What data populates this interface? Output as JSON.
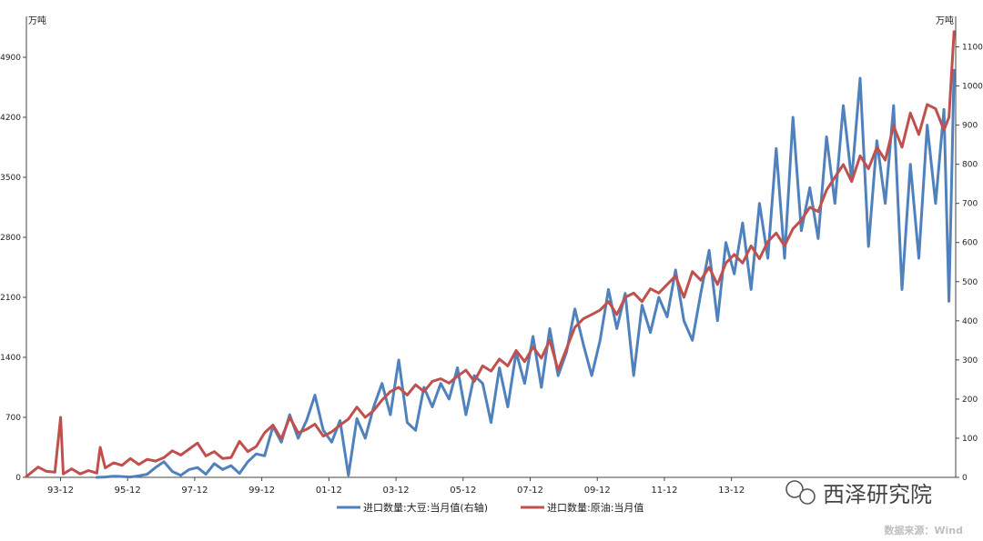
{
  "chart_data": {
    "type": "line",
    "title": "",
    "left_axis": {
      "unit_label": "万吨",
      "ylim": [
        0,
        5250
      ],
      "ticks": [
        0,
        700,
        1400,
        2100,
        2800,
        3500,
        4200,
        4900
      ]
    },
    "right_axis": {
      "unit_label": "万吨",
      "ylim": [
        0,
        1150
      ],
      "ticks": [
        0,
        100,
        200,
        300,
        400,
        500,
        600,
        700,
        800,
        900,
        1000,
        1100
      ]
    },
    "x_axis": {
      "start": 1992.9,
      "end": 2020.6,
      "tick_labels": [
        {
          "label": "93-12",
          "value": 1993.917
        },
        {
          "label": "95-12",
          "value": 1995.917
        },
        {
          "label": "97-12",
          "value": 1997.917
        },
        {
          "label": "99-12",
          "value": 1999.917
        },
        {
          "label": "01-12",
          "value": 2001.917
        },
        {
          "label": "03-12",
          "value": 2003.917
        },
        {
          "label": "05-12",
          "value": 2005.917
        },
        {
          "label": "07-12",
          "value": 2007.917
        },
        {
          "label": "09-12",
          "value": 2009.917
        },
        {
          "label": "11-12",
          "value": 2011.917
        },
        {
          "label": "13-12",
          "value": 2013.917
        }
      ]
    },
    "series": [
      {
        "name": "进口数量:大豆:当月值(右轴)",
        "axis": "right",
        "color": "#4f81bd",
        "points": [
          [
            1995.0,
            0
          ],
          [
            1995.25,
            1
          ],
          [
            1995.5,
            3
          ],
          [
            1995.75,
            2
          ],
          [
            1996.0,
            1
          ],
          [
            1996.25,
            4
          ],
          [
            1996.5,
            8
          ],
          [
            1996.75,
            25
          ],
          [
            1997.0,
            40
          ],
          [
            1997.25,
            15
          ],
          [
            1997.5,
            5
          ],
          [
            1997.75,
            20
          ],
          [
            1998.0,
            25
          ],
          [
            1998.25,
            8
          ],
          [
            1998.5,
            35
          ],
          [
            1998.75,
            20
          ],
          [
            1999.0,
            30
          ],
          [
            1999.25,
            10
          ],
          [
            1999.5,
            40
          ],
          [
            1999.75,
            60
          ],
          [
            2000.0,
            55
          ],
          [
            2000.25,
            130
          ],
          [
            2000.5,
            90
          ],
          [
            2000.75,
            160
          ],
          [
            2001.0,
            100
          ],
          [
            2001.25,
            145
          ],
          [
            2001.5,
            210
          ],
          [
            2001.75,
            120
          ],
          [
            2002.0,
            90
          ],
          [
            2002.25,
            145
          ],
          [
            2002.5,
            5
          ],
          [
            2002.75,
            150
          ],
          [
            2003.0,
            100
          ],
          [
            2003.25,
            180
          ],
          [
            2003.5,
            240
          ],
          [
            2003.75,
            160
          ],
          [
            2004.0,
            300
          ],
          [
            2004.25,
            140
          ],
          [
            2004.5,
            120
          ],
          [
            2004.75,
            230
          ],
          [
            2005.0,
            180
          ],
          [
            2005.25,
            240
          ],
          [
            2005.5,
            200
          ],
          [
            2005.75,
            280
          ],
          [
            2006.0,
            160
          ],
          [
            2006.25,
            260
          ],
          [
            2006.5,
            240
          ],
          [
            2006.75,
            140
          ],
          [
            2007.0,
            280
          ],
          [
            2007.25,
            180
          ],
          [
            2007.5,
            320
          ],
          [
            2007.75,
            240
          ],
          [
            2008.0,
            360
          ],
          [
            2008.25,
            230
          ],
          [
            2008.5,
            380
          ],
          [
            2008.75,
            260
          ],
          [
            2009.0,
            320
          ],
          [
            2009.25,
            430
          ],
          [
            2009.5,
            340
          ],
          [
            2009.75,
            260
          ],
          [
            2010.0,
            350
          ],
          [
            2010.25,
            480
          ],
          [
            2010.5,
            380
          ],
          [
            2010.75,
            470
          ],
          [
            2011.0,
            260
          ],
          [
            2011.25,
            440
          ],
          [
            2011.5,
            370
          ],
          [
            2011.75,
            460
          ],
          [
            2012.0,
            410
          ],
          [
            2012.25,
            530
          ],
          [
            2012.5,
            400
          ],
          [
            2012.75,
            350
          ],
          [
            2013.0,
            470
          ],
          [
            2013.25,
            580
          ],
          [
            2013.5,
            400
          ],
          [
            2013.75,
            600
          ],
          [
            2014.0,
            520
          ],
          [
            2014.25,
            650
          ],
          [
            2014.5,
            480
          ],
          [
            2014.75,
            700
          ],
          [
            2015.0,
            560
          ],
          [
            2015.25,
            840
          ],
          [
            2015.5,
            560
          ],
          [
            2015.75,
            920
          ],
          [
            2016.0,
            630
          ],
          [
            2016.25,
            740
          ],
          [
            2016.5,
            610
          ],
          [
            2016.75,
            870
          ],
          [
            2017.0,
            700
          ],
          [
            2017.25,
            950
          ],
          [
            2017.5,
            760
          ],
          [
            2017.75,
            1020
          ],
          [
            2018.0,
            590
          ],
          [
            2018.25,
            860
          ],
          [
            2018.5,
            700
          ],
          [
            2018.75,
            950
          ],
          [
            2019.0,
            480
          ],
          [
            2019.25,
            800
          ],
          [
            2019.5,
            560
          ],
          [
            2019.75,
            900
          ],
          [
            2020.0,
            700
          ],
          [
            2020.25,
            940
          ],
          [
            2020.4,
            450
          ],
          [
            2020.55,
            1040
          ]
        ]
      },
      {
        "name": "进口数量:原油:当月值",
        "axis": "left",
        "color": "#c0504d",
        "points": [
          [
            1992.9,
            10
          ],
          [
            1993.25,
            120
          ],
          [
            1993.5,
            70
          ],
          [
            1993.75,
            60
          ],
          [
            1993.92,
            700
          ],
          [
            1994.0,
            40
          ],
          [
            1994.25,
            100
          ],
          [
            1994.5,
            40
          ],
          [
            1994.75,
            80
          ],
          [
            1995.0,
            50
          ],
          [
            1995.1,
            350
          ],
          [
            1995.25,
            110
          ],
          [
            1995.5,
            170
          ],
          [
            1995.75,
            140
          ],
          [
            1996.0,
            220
          ],
          [
            1996.25,
            150
          ],
          [
            1996.5,
            210
          ],
          [
            1996.75,
            190
          ],
          [
            1997.0,
            230
          ],
          [
            1997.25,
            310
          ],
          [
            1997.5,
            260
          ],
          [
            1997.75,
            330
          ],
          [
            1998.0,
            400
          ],
          [
            1998.25,
            250
          ],
          [
            1998.5,
            300
          ],
          [
            1998.75,
            220
          ],
          [
            1999.0,
            230
          ],
          [
            1999.25,
            420
          ],
          [
            1999.5,
            300
          ],
          [
            1999.75,
            360
          ],
          [
            2000.0,
            520
          ],
          [
            2000.25,
            610
          ],
          [
            2000.5,
            450
          ],
          [
            2000.75,
            700
          ],
          [
            2001.0,
            520
          ],
          [
            2001.25,
            560
          ],
          [
            2001.5,
            620
          ],
          [
            2001.75,
            480
          ],
          [
            2002.0,
            530
          ],
          [
            2002.25,
            610
          ],
          [
            2002.5,
            680
          ],
          [
            2002.75,
            820
          ],
          [
            2003.0,
            700
          ],
          [
            2003.25,
            780
          ],
          [
            2003.5,
            900
          ],
          [
            2003.75,
            1000
          ],
          [
            2004.0,
            1050
          ],
          [
            2004.25,
            960
          ],
          [
            2004.5,
            1080
          ],
          [
            2004.75,
            1000
          ],
          [
            2005.0,
            1120
          ],
          [
            2005.25,
            1150
          ],
          [
            2005.5,
            1100
          ],
          [
            2005.75,
            1180
          ],
          [
            2006.0,
            1250
          ],
          [
            2006.25,
            1120
          ],
          [
            2006.5,
            1300
          ],
          [
            2006.75,
            1240
          ],
          [
            2007.0,
            1380
          ],
          [
            2007.25,
            1300
          ],
          [
            2007.5,
            1480
          ],
          [
            2007.75,
            1350
          ],
          [
            2008.0,
            1520
          ],
          [
            2008.25,
            1390
          ],
          [
            2008.5,
            1600
          ],
          [
            2008.75,
            1250
          ],
          [
            2009.0,
            1500
          ],
          [
            2009.25,
            1750
          ],
          [
            2009.5,
            1850
          ],
          [
            2009.75,
            1900
          ],
          [
            2010.0,
            1950
          ],
          [
            2010.25,
            2050
          ],
          [
            2010.5,
            1900
          ],
          [
            2010.75,
            2100
          ],
          [
            2011.0,
            2150
          ],
          [
            2011.25,
            2050
          ],
          [
            2011.5,
            2200
          ],
          [
            2011.75,
            2150
          ],
          [
            2012.0,
            2250
          ],
          [
            2012.25,
            2350
          ],
          [
            2012.5,
            2100
          ],
          [
            2012.75,
            2400
          ],
          [
            2013.0,
            2300
          ],
          [
            2013.25,
            2450
          ],
          [
            2013.5,
            2250
          ],
          [
            2013.75,
            2500
          ],
          [
            2014.0,
            2600
          ],
          [
            2014.25,
            2500
          ],
          [
            2014.5,
            2700
          ],
          [
            2014.75,
            2550
          ],
          [
            2015.0,
            2750
          ],
          [
            2015.25,
            2850
          ],
          [
            2015.5,
            2700
          ],
          [
            2015.75,
            2900
          ],
          [
            2016.0,
            3000
          ],
          [
            2016.25,
            3150
          ],
          [
            2016.5,
            3100
          ],
          [
            2016.75,
            3350
          ],
          [
            2017.0,
            3500
          ],
          [
            2017.25,
            3650
          ],
          [
            2017.5,
            3450
          ],
          [
            2017.75,
            3750
          ],
          [
            2018.0,
            3600
          ],
          [
            2018.25,
            3850
          ],
          [
            2018.5,
            3700
          ],
          [
            2018.75,
            4100
          ],
          [
            2019.0,
            3850
          ],
          [
            2019.25,
            4250
          ],
          [
            2019.5,
            4000
          ],
          [
            2019.75,
            4350
          ],
          [
            2020.0,
            4300
          ],
          [
            2020.25,
            4050
          ],
          [
            2020.4,
            4200
          ],
          [
            2020.55,
            5200
          ]
        ]
      }
    ],
    "legend": {
      "position": "bottom-center",
      "items": [
        "进口数量:大豆:当月值(右轴)",
        "进口数量:原油:当月值"
      ]
    }
  },
  "watermark": {
    "text": "西泽研究院",
    "icon": "wechat-icon"
  },
  "source_note": "数据来源：Wind",
  "colors": {
    "axis": "#444444",
    "text": "#222222",
    "source_text": "#bfbfbf"
  }
}
